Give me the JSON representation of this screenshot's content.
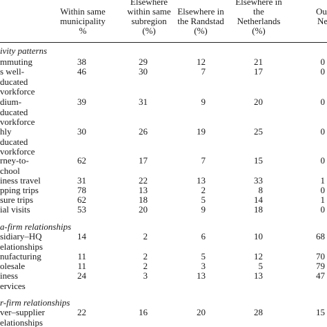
{
  "columns": [
    {
      "lines": [
        "Within same",
        "municipality",
        "%"
      ]
    },
    {
      "lines": [
        "Elsewhere",
        "within same",
        "subregion",
        "(%)"
      ]
    },
    {
      "lines": [
        "Elsewhere in",
        "the Randstad",
        "(%)"
      ]
    },
    {
      "lines": [
        "Elsewhere in",
        "the",
        "Netherlands",
        "(%)"
      ]
    },
    {
      "lines": [
        "Outside",
        "Netherla"
      ]
    }
  ],
  "sections": [
    {
      "title": "ivity patterns",
      "rows": [
        {
          "label": [
            "mmuting"
          ],
          "values": [
            "38",
            "29",
            "12",
            "21",
            "0"
          ]
        },
        {
          "label": [
            "s well-",
            "ducated",
            "vorkforce"
          ],
          "values": [
            "46",
            "30",
            "7",
            "17",
            "0"
          ]
        },
        {
          "label": [
            "dium-",
            "ducated",
            "vorkforce"
          ],
          "values": [
            "39",
            "31",
            "9",
            "20",
            "0"
          ]
        },
        {
          "label": [
            "hly",
            "ducated",
            "vorkforce"
          ],
          "values": [
            "30",
            "26",
            "19",
            "25",
            "0"
          ]
        },
        {
          "label": [
            "rney-to-",
            "chool"
          ],
          "values": [
            "62",
            "17",
            "7",
            "15",
            "0"
          ]
        },
        {
          "label": [
            "iness travel"
          ],
          "values": [
            "31",
            "22",
            "13",
            "33",
            "1"
          ]
        },
        {
          "label": [
            "pping trips"
          ],
          "values": [
            "78",
            "13",
            "2",
            "8",
            "0"
          ]
        },
        {
          "label": [
            "sure trips"
          ],
          "values": [
            "62",
            "18",
            "5",
            "14",
            "1"
          ]
        },
        {
          "label": [
            "ial visits"
          ],
          "values": [
            "53",
            "20",
            "9",
            "18",
            "0"
          ]
        }
      ]
    },
    {
      "title": "a-firm relationships",
      "rows": [
        {
          "label": [
            "sidiary–HQ",
            "elationships"
          ],
          "values": [
            "14",
            "2",
            "6",
            "10",
            "68"
          ]
        },
        {
          "label": [
            "nufacturing"
          ],
          "values": [
            "11",
            "2",
            "5",
            "12",
            "70"
          ]
        },
        {
          "label": [
            "olesale"
          ],
          "values": [
            "11",
            "2",
            "3",
            "5",
            "79"
          ]
        },
        {
          "label": [
            "iness",
            "ervices"
          ],
          "values": [
            "24",
            "3",
            "13",
            "13",
            "47"
          ]
        }
      ]
    },
    {
      "title": "r-firm relationships",
      "rows": [
        {
          "label": [
            "ver–supplier",
            "elationships"
          ],
          "values": [
            "22",
            "16",
            "20",
            "28",
            "15"
          ]
        }
      ]
    }
  ]
}
